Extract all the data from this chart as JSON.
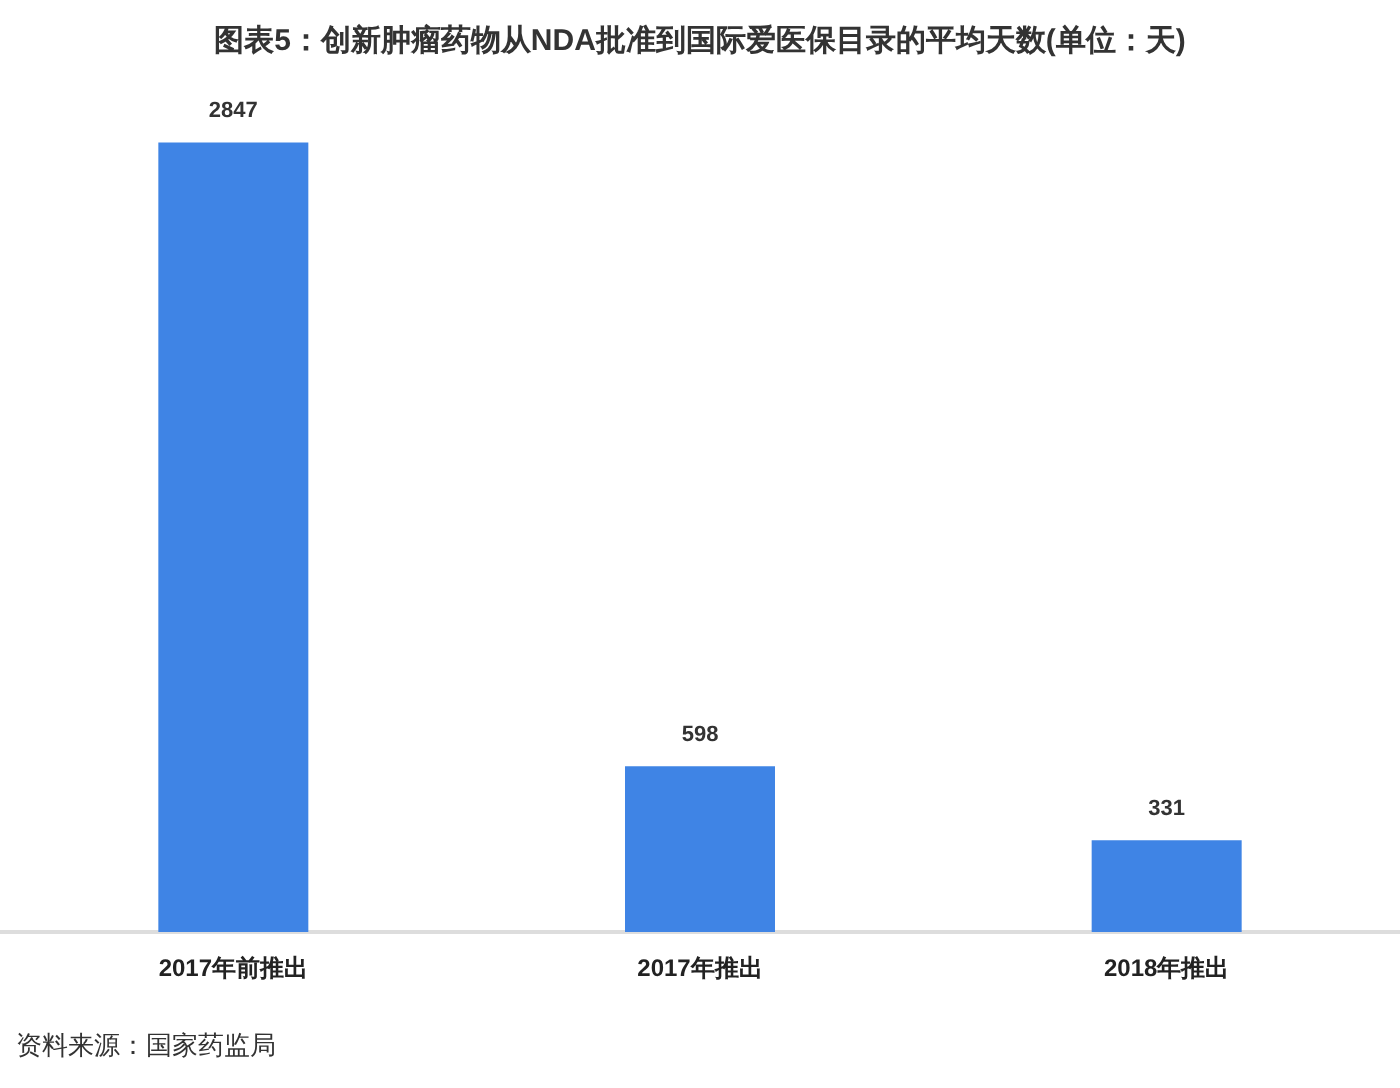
{
  "chart_data": {
    "type": "bar",
    "title": "图表5：创新肿瘤药物从NDA批准到国际爱医保目录的平均天数(单位：天)",
    "categories": [
      "2017年前推出",
      "2017年推出",
      "2018年推出"
    ],
    "values": [
      2847,
      598,
      331
    ],
    "color": "#3f84e5",
    "data_labels": true,
    "annotations": [
      "资料来源：国家药监局"
    ]
  }
}
